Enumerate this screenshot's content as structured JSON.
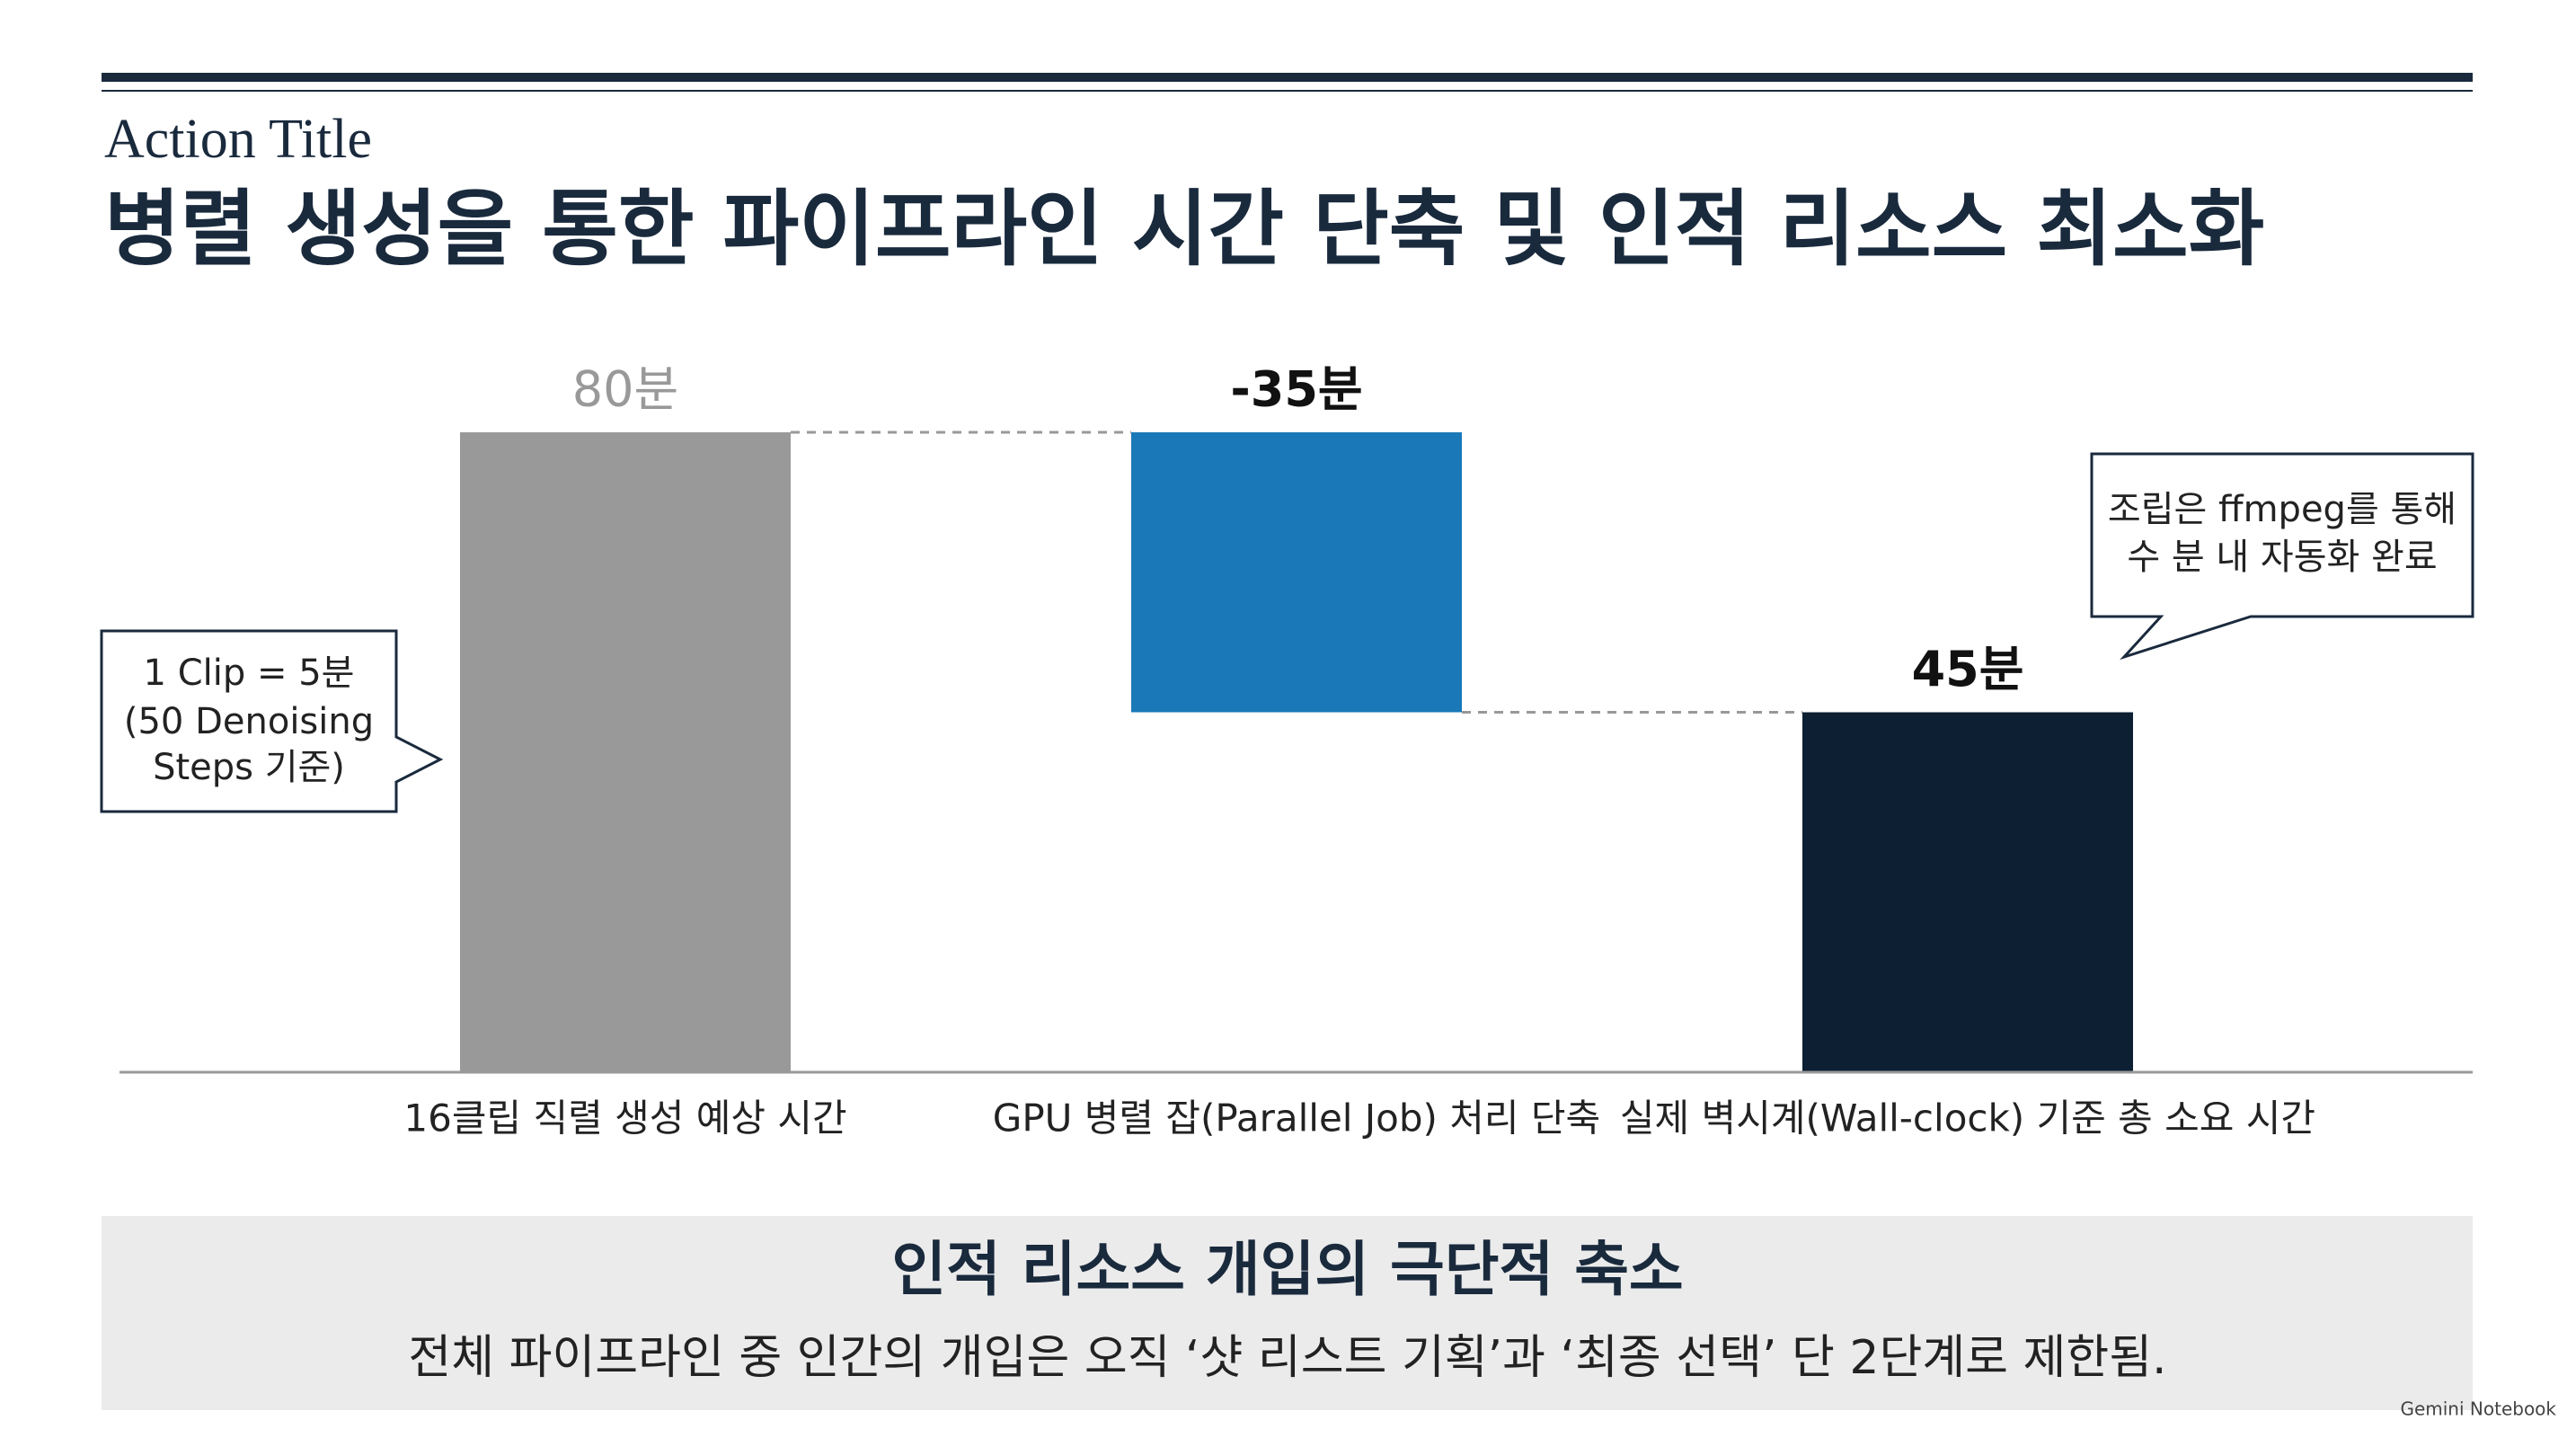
{
  "header": {
    "kicker": "Action Title",
    "title": "병렬 생성을 통한 파이프라인 시간 단축 및 인적 리소스 최소화"
  },
  "chart_data": {
    "type": "waterfall",
    "categories": [
      "16클립 직렬 생성 예상 시간",
      "GPU 병렬 잡(Parallel Job) 처리 단축",
      "실제 벽시계(Wall-clock) 기준 총 소요 시간"
    ],
    "values": [
      80,
      -35,
      45
    ],
    "value_labels": [
      "80분",
      "-35분",
      "45분"
    ],
    "measures": [
      "absolute",
      "relative",
      "total"
    ],
    "colors": [
      "#999999",
      "#1a78b8",
      "#0c1f33"
    ],
    "annotations": [
      {
        "lines": [
          "1 Clip = 5분",
          "(50 Denoising",
          "Steps 기준)"
        ]
      },
      {
        "lines": [
          "조립은 ffmpeg를 통해",
          "수 분 내 자동화 완료"
        ]
      }
    ]
  },
  "footer": {
    "heading": "인적 리소스 개입의 극단적 축소",
    "body": "전체 파이프라인 중 인간의 개입은 오직 ‘샷 리스트 기획’과 ‘최종 선택’ 단 2단계로 제한됨."
  },
  "watermark": "Gemini Notebook"
}
